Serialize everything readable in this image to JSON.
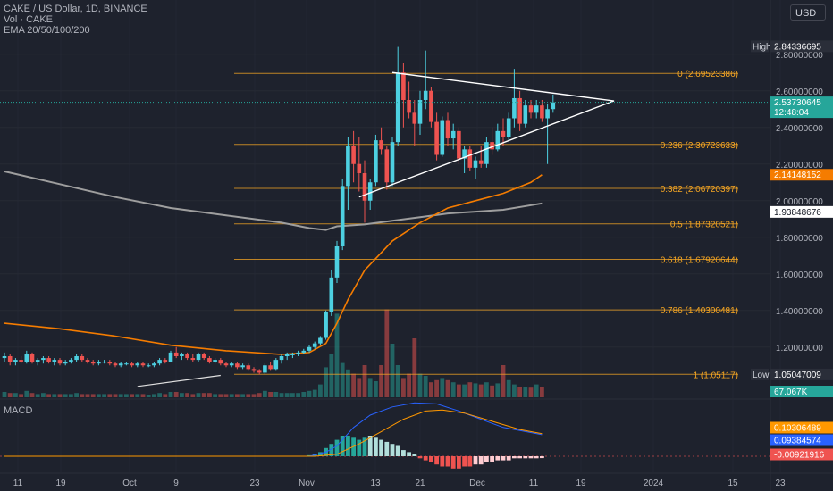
{
  "header": {
    "symbol_line": "CAKE / US Dollar, 1D, BINANCE",
    "volume_line": "Vol · CAKE",
    "ema_line": "EMA 20/50/100/200",
    "currency_button": "USD"
  },
  "macd_pane": {
    "label": "MACD"
  },
  "colors": {
    "background": "#1e222d",
    "up": "#4dd0e1",
    "down": "#ef5350",
    "fib": "#f5a623",
    "ema_orange": "#f57c00",
    "ema_gray": "#9e9e9e",
    "macd_line": "#2962ff",
    "signal_line": "#ff9800",
    "triangle": "#ffffff"
  },
  "chart_data": {
    "type": "candlestick",
    "price_axis_ticks": [
      "2.80000000",
      "2.60000000",
      "2.40000000",
      "2.20000000",
      "2.00000000",
      "1.80000000",
      "1.60000000",
      "1.40000000",
      "1.20000000"
    ],
    "price_range": [
      0.95,
      2.95
    ],
    "time_axis_ticks": [
      "11",
      "19",
      "Oct",
      "9",
      "23",
      "Nov",
      "13",
      "21",
      "Dec",
      "11",
      "19",
      "2024",
      "15",
      "23"
    ],
    "price_labels": [
      {
        "prefix": "High",
        "value": "2.84336695",
        "color": "#2a2e39",
        "y": 2.84336695
      },
      {
        "prefix": "",
        "value": "2.53730645",
        "sub": "12:48:04",
        "color": "#26a69a",
        "y": 2.53730645
      },
      {
        "prefix": "",
        "value": "2.14148152",
        "color": "#f57c00",
        "y": 2.14148152
      },
      {
        "prefix": "",
        "value": "1.93848676",
        "color": "#ffffff",
        "text_color": "#131722",
        "y": 1.93848676
      },
      {
        "prefix": "Low",
        "value": "1.05047009",
        "color": "#2a2e39",
        "y": 1.05047009
      }
    ],
    "volume_label": "67.067K",
    "macd_labels": [
      {
        "value": "0.10306489",
        "color": "#ff9800"
      },
      {
        "value": "0.09384574",
        "color": "#2962ff"
      },
      {
        "value": "-0.00921916",
        "color": "#ef5350"
      }
    ],
    "fibonacci": [
      {
        "level": "0",
        "value": "2.69523386",
        "price": 2.69523386
      },
      {
        "level": "0.236",
        "value": "2.30723633",
        "price": 2.30723633
      },
      {
        "level": "0.382",
        "value": "2.06720397",
        "price": 2.06720397
      },
      {
        "level": "0.5",
        "value": "1.87320521",
        "price": 1.87320521
      },
      {
        "level": "0.618",
        "value": "1.67920644",
        "price": 1.67920644
      },
      {
        "level": "0.786",
        "value": "1.40300481",
        "price": 1.40300481
      },
      {
        "level": "1",
        "value": "1.05117",
        "price": 1.05117
      }
    ],
    "candles": [
      {
        "o": 1.14,
        "h": 1.17,
        "l": 1.12,
        "c": 1.15
      },
      {
        "o": 1.15,
        "h": 1.16,
        "l": 1.1,
        "c": 1.12
      },
      {
        "o": 1.12,
        "h": 1.14,
        "l": 1.1,
        "c": 1.13
      },
      {
        "o": 1.13,
        "h": 1.15,
        "l": 1.11,
        "c": 1.12
      },
      {
        "o": 1.12,
        "h": 1.18,
        "l": 1.11,
        "c": 1.16
      },
      {
        "o": 1.16,
        "h": 1.17,
        "l": 1.11,
        "c": 1.12
      },
      {
        "o": 1.12,
        "h": 1.14,
        "l": 1.1,
        "c": 1.13
      },
      {
        "o": 1.13,
        "h": 1.15,
        "l": 1.11,
        "c": 1.14
      },
      {
        "o": 1.14,
        "h": 1.15,
        "l": 1.11,
        "c": 1.12
      },
      {
        "o": 1.12,
        "h": 1.14,
        "l": 1.1,
        "c": 1.13
      },
      {
        "o": 1.13,
        "h": 1.14,
        "l": 1.1,
        "c": 1.11
      },
      {
        "o": 1.11,
        "h": 1.13,
        "l": 1.1,
        "c": 1.12
      },
      {
        "o": 1.12,
        "h": 1.14,
        "l": 1.11,
        "c": 1.13
      },
      {
        "o": 1.13,
        "h": 1.16,
        "l": 1.12,
        "c": 1.15
      },
      {
        "o": 1.15,
        "h": 1.16,
        "l": 1.12,
        "c": 1.13
      },
      {
        "o": 1.13,
        "h": 1.14,
        "l": 1.11,
        "c": 1.12
      },
      {
        "o": 1.12,
        "h": 1.13,
        "l": 1.1,
        "c": 1.11
      },
      {
        "o": 1.11,
        "h": 1.13,
        "l": 1.1,
        "c": 1.12
      },
      {
        "o": 1.12,
        "h": 1.13,
        "l": 1.11,
        "c": 1.12
      },
      {
        "o": 1.12,
        "h": 1.13,
        "l": 1.1,
        "c": 1.11
      },
      {
        "o": 1.11,
        "h": 1.12,
        "l": 1.09,
        "c": 1.1
      },
      {
        "o": 1.1,
        "h": 1.12,
        "l": 1.09,
        "c": 1.11
      },
      {
        "o": 1.11,
        "h": 1.12,
        "l": 1.1,
        "c": 1.11
      },
      {
        "o": 1.11,
        "h": 1.12,
        "l": 1.09,
        "c": 1.1
      },
      {
        "o": 1.1,
        "h": 1.12,
        "l": 1.09,
        "c": 1.11
      },
      {
        "o": 1.11,
        "h": 1.12,
        "l": 1.09,
        "c": 1.1
      },
      {
        "o": 1.1,
        "h": 1.11,
        "l": 1.09,
        "c": 1.1
      },
      {
        "o": 1.1,
        "h": 1.12,
        "l": 1.09,
        "c": 1.11
      },
      {
        "o": 1.11,
        "h": 1.14,
        "l": 1.1,
        "c": 1.13
      },
      {
        "o": 1.13,
        "h": 1.14,
        "l": 1.11,
        "c": 1.12
      },
      {
        "o": 1.12,
        "h": 1.18,
        "l": 1.12,
        "c": 1.17
      },
      {
        "o": 1.17,
        "h": 1.2,
        "l": 1.14,
        "c": 1.15
      },
      {
        "o": 1.15,
        "h": 1.17,
        "l": 1.13,
        "c": 1.16
      },
      {
        "o": 1.16,
        "h": 1.17,
        "l": 1.13,
        "c": 1.14
      },
      {
        "o": 1.14,
        "h": 1.16,
        "l": 1.12,
        "c": 1.13
      },
      {
        "o": 1.13,
        "h": 1.17,
        "l": 1.12,
        "c": 1.16
      },
      {
        "o": 1.16,
        "h": 1.17,
        "l": 1.13,
        "c": 1.14
      },
      {
        "o": 1.14,
        "h": 1.15,
        "l": 1.11,
        "c": 1.12
      },
      {
        "o": 1.12,
        "h": 1.14,
        "l": 1.11,
        "c": 1.13
      },
      {
        "o": 1.13,
        "h": 1.14,
        "l": 1.1,
        "c": 1.11
      },
      {
        "o": 1.11,
        "h": 1.12,
        "l": 1.09,
        "c": 1.1
      },
      {
        "o": 1.1,
        "h": 1.12,
        "l": 1.09,
        "c": 1.11
      },
      {
        "o": 1.11,
        "h": 1.12,
        "l": 1.08,
        "c": 1.09
      },
      {
        "o": 1.09,
        "h": 1.11,
        "l": 1.08,
        "c": 1.1
      },
      {
        "o": 1.1,
        "h": 1.11,
        "l": 1.07,
        "c": 1.08
      },
      {
        "o": 1.08,
        "h": 1.09,
        "l": 1.06,
        "c": 1.07
      },
      {
        "o": 1.07,
        "h": 1.08,
        "l": 1.05,
        "c": 1.06
      },
      {
        "o": 1.06,
        "h": 1.11,
        "l": 1.05,
        "c": 1.1
      },
      {
        "o": 1.1,
        "h": 1.12,
        "l": 1.07,
        "c": 1.08
      },
      {
        "o": 1.08,
        "h": 1.14,
        "l": 1.07,
        "c": 1.13
      },
      {
        "o": 1.13,
        "h": 1.16,
        "l": 1.11,
        "c": 1.15
      },
      {
        "o": 1.15,
        "h": 1.17,
        "l": 1.13,
        "c": 1.16
      },
      {
        "o": 1.16,
        "h": 1.17,
        "l": 1.14,
        "c": 1.16
      },
      {
        "o": 1.16,
        "h": 1.18,
        "l": 1.15,
        "c": 1.17
      },
      {
        "o": 1.17,
        "h": 1.19,
        "l": 1.16,
        "c": 1.18
      },
      {
        "o": 1.18,
        "h": 1.21,
        "l": 1.17,
        "c": 1.2
      },
      {
        "o": 1.2,
        "h": 1.23,
        "l": 1.19,
        "c": 1.22
      },
      {
        "o": 1.22,
        "h": 1.26,
        "l": 1.21,
        "c": 1.25
      },
      {
        "o": 1.25,
        "h": 1.4,
        "l": 1.24,
        "c": 1.39
      },
      {
        "o": 1.39,
        "h": 1.62,
        "l": 1.37,
        "c": 1.58
      },
      {
        "o": 1.58,
        "h": 1.78,
        "l": 1.55,
        "c": 1.75
      },
      {
        "o": 1.75,
        "h": 2.12,
        "l": 1.73,
        "c": 2.08
      },
      {
        "o": 2.08,
        "h": 2.35,
        "l": 1.95,
        "c": 2.3
      },
      {
        "o": 2.3,
        "h": 2.38,
        "l": 2.1,
        "c": 2.2
      },
      {
        "o": 2.2,
        "h": 2.35,
        "l": 2.05,
        "c": 2.15
      },
      {
        "o": 2.15,
        "h": 2.22,
        "l": 1.88,
        "c": 2.0
      },
      {
        "o": 2.0,
        "h": 2.12,
        "l": 1.95,
        "c": 2.1
      },
      {
        "o": 2.1,
        "h": 2.36,
        "l": 2.08,
        "c": 2.33
      },
      {
        "o": 2.33,
        "h": 2.4,
        "l": 2.25,
        "c": 2.28
      },
      {
        "o": 2.28,
        "h": 2.3,
        "l": 2.06,
        "c": 2.1
      },
      {
        "o": 2.1,
        "h": 2.35,
        "l": 2.08,
        "c": 2.32
      },
      {
        "o": 2.32,
        "h": 2.84,
        "l": 2.3,
        "c": 2.7
      },
      {
        "o": 2.7,
        "h": 2.75,
        "l": 2.4,
        "c": 2.55
      },
      {
        "o": 2.55,
        "h": 2.65,
        "l": 2.45,
        "c": 2.48
      },
      {
        "o": 2.48,
        "h": 2.55,
        "l": 2.3,
        "c": 2.42
      },
      {
        "o": 2.42,
        "h": 2.6,
        "l": 2.36,
        "c": 2.55
      },
      {
        "o": 2.55,
        "h": 2.82,
        "l": 2.5,
        "c": 2.6
      },
      {
        "o": 2.6,
        "h": 2.62,
        "l": 2.4,
        "c": 2.43
      },
      {
        "o": 2.43,
        "h": 2.48,
        "l": 2.22,
        "c": 2.25
      },
      {
        "o": 2.25,
        "h": 2.46,
        "l": 2.24,
        "c": 2.44
      },
      {
        "o": 2.44,
        "h": 2.48,
        "l": 2.3,
        "c": 2.34
      },
      {
        "o": 2.34,
        "h": 2.42,
        "l": 2.28,
        "c": 2.38
      },
      {
        "o": 2.38,
        "h": 2.4,
        "l": 2.2,
        "c": 2.23
      },
      {
        "o": 2.23,
        "h": 2.3,
        "l": 2.15,
        "c": 2.28
      },
      {
        "o": 2.28,
        "h": 2.3,
        "l": 2.16,
        "c": 2.18
      },
      {
        "o": 2.18,
        "h": 2.24,
        "l": 2.12,
        "c": 2.22
      },
      {
        "o": 2.22,
        "h": 2.3,
        "l": 2.18,
        "c": 2.2
      },
      {
        "o": 2.2,
        "h": 2.35,
        "l": 2.18,
        "c": 2.32
      },
      {
        "o": 2.32,
        "h": 2.4,
        "l": 2.25,
        "c": 2.28
      },
      {
        "o": 2.28,
        "h": 2.42,
        "l": 2.27,
        "c": 2.38
      },
      {
        "o": 2.38,
        "h": 2.45,
        "l": 2.3,
        "c": 2.35
      },
      {
        "o": 2.35,
        "h": 2.48,
        "l": 2.33,
        "c": 2.45
      },
      {
        "o": 2.45,
        "h": 2.72,
        "l": 2.4,
        "c": 2.56
      },
      {
        "o": 2.56,
        "h": 2.6,
        "l": 2.38,
        "c": 2.42
      },
      {
        "o": 2.42,
        "h": 2.55,
        "l": 2.4,
        "c": 2.52
      },
      {
        "o": 2.52,
        "h": 2.55,
        "l": 2.45,
        "c": 2.48
      },
      {
        "o": 2.48,
        "h": 2.55,
        "l": 2.45,
        "c": 2.52
      },
      {
        "o": 2.52,
        "h": 2.55,
        "l": 2.43,
        "c": 2.45
      },
      {
        "o": 2.45,
        "h": 2.53,
        "l": 2.2,
        "c": 2.5
      },
      {
        "o": 2.5,
        "h": 2.58,
        "l": 2.48,
        "c": 2.537
      }
    ],
    "volume": [
      0.05,
      0.04,
      0.04,
      0.03,
      0.06,
      0.04,
      0.03,
      0.04,
      0.03,
      0.03,
      0.03,
      0.03,
      0.03,
      0.04,
      0.03,
      0.03,
      0.03,
      0.03,
      0.03,
      0.03,
      0.03,
      0.03,
      0.03,
      0.03,
      0.03,
      0.03,
      0.02,
      0.03,
      0.04,
      0.03,
      0.05,
      0.05,
      0.04,
      0.04,
      0.03,
      0.04,
      0.04,
      0.04,
      0.03,
      0.03,
      0.03,
      0.03,
      0.03,
      0.03,
      0.03,
      0.03,
      0.04,
      0.06,
      0.05,
      0.05,
      0.04,
      0.04,
      0.04,
      0.04,
      0.05,
      0.06,
      0.07,
      0.12,
      0.28,
      0.4,
      0.78,
      0.32,
      0.26,
      0.22,
      0.18,
      0.3,
      0.18,
      0.15,
      0.3,
      0.82,
      0.5,
      0.3,
      0.18,
      0.22,
      0.55,
      0.22,
      0.2,
      0.14,
      0.16,
      0.18,
      0.16,
      0.14,
      0.12,
      0.12,
      0.14,
      0.13,
      0.12,
      0.14,
      0.11,
      0.13,
      0.3,
      0.16,
      0.12,
      0.1,
      0.1,
      0.09,
      0.12,
      0.1
    ],
    "ema_orange": [
      [
        0,
        1.33
      ],
      [
        10,
        1.3
      ],
      [
        20,
        1.26
      ],
      [
        30,
        1.21
      ],
      [
        40,
        1.18
      ],
      [
        50,
        1.16
      ],
      [
        55,
        1.17
      ],
      [
        58,
        1.22
      ],
      [
        60,
        1.33
      ],
      [
        62,
        1.46
      ],
      [
        65,
        1.62
      ],
      [
        70,
        1.78
      ],
      [
        75,
        1.88
      ],
      [
        80,
        1.96
      ],
      [
        85,
        2.0
      ],
      [
        90,
        2.04
      ],
      [
        95,
        2.1
      ],
      [
        97,
        2.141
      ]
    ],
    "ema_gray": [
      [
        0,
        2.16
      ],
      [
        10,
        2.09
      ],
      [
        20,
        2.02
      ],
      [
        30,
        1.96
      ],
      [
        40,
        1.92
      ],
      [
        50,
        1.88
      ],
      [
        55,
        1.85
      ],
      [
        58,
        1.84
      ],
      [
        60,
        1.86
      ],
      [
        65,
        1.87
      ],
      [
        70,
        1.89
      ],
      [
        75,
        1.91
      ],
      [
        80,
        1.93
      ],
      [
        85,
        1.94
      ],
      [
        90,
        1.95
      ],
      [
        97,
        1.985
      ]
    ],
    "triangle": {
      "upper_start": [
        70,
        2.7
      ],
      "lower_start": [
        64,
        2.02
      ],
      "apex": [
        110,
        2.545
      ]
    },
    "macd": {
      "macd_line": [
        [
          0,
          0.0
        ],
        [
          55,
          0.0
        ],
        [
          58,
          0.02
        ],
        [
          60,
          0.05
        ],
        [
          63,
          0.14
        ],
        [
          66,
          0.2
        ],
        [
          70,
          0.24
        ],
        [
          74,
          0.26
        ],
        [
          78,
          0.255
        ],
        [
          82,
          0.22
        ],
        [
          86,
          0.18
        ],
        [
          90,
          0.14
        ],
        [
          94,
          0.12
        ],
        [
          97,
          0.105
        ]
      ],
      "signal_line": [
        [
          0,
          0.0
        ],
        [
          56,
          0.0
        ],
        [
          60,
          0.01
        ],
        [
          64,
          0.06
        ],
        [
          68,
          0.12
        ],
        [
          72,
          0.18
        ],
        [
          76,
          0.22
        ],
        [
          79,
          0.225
        ],
        [
          83,
          0.21
        ],
        [
          88,
          0.17
        ],
        [
          93,
          0.13
        ],
        [
          97,
          0.11
        ]
      ],
      "histogram": [
        0,
        0,
        0,
        0,
        0,
        0,
        0,
        0,
        0,
        0,
        0,
        0,
        0,
        0,
        0,
        0,
        0,
        0,
        0,
        0,
        0,
        0,
        0,
        0,
        0,
        0,
        0,
        0,
        0,
        0,
        0,
        0,
        0,
        0,
        0,
        0,
        0,
        0,
        0,
        0,
        0,
        0,
        0,
        0,
        0,
        0,
        0,
        0,
        0,
        0,
        0,
        0,
        0,
        0,
        0,
        0.005,
        0.01,
        0.02,
        0.04,
        0.06,
        0.08,
        0.1,
        0.1,
        0.09,
        0.08,
        0.09,
        0.1,
        0.09,
        0.08,
        0.07,
        0.06,
        0.05,
        0.03,
        0.02,
        0.01,
        -0.01,
        -0.02,
        -0.03,
        -0.04,
        -0.05,
        -0.05,
        -0.06,
        -0.06,
        -0.05,
        -0.05,
        -0.04,
        -0.04,
        -0.03,
        -0.03,
        -0.02,
        -0.02,
        -0.02,
        -0.01,
        -0.01,
        -0.01,
        -0.01,
        -0.01,
        -0.009
      ]
    }
  }
}
